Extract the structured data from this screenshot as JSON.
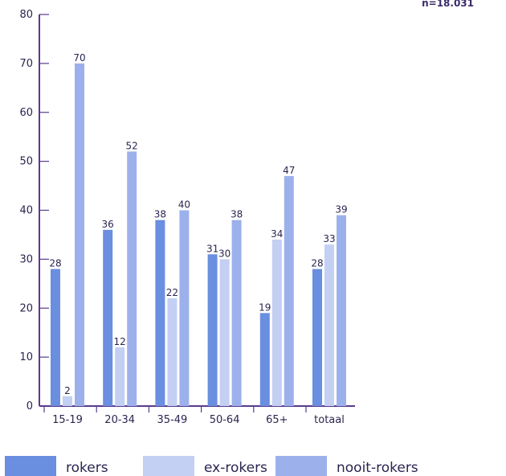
{
  "note": "n=18.031",
  "colors": {
    "axis": "#5a3a8c",
    "text": "#2a2550",
    "rokers": "#6a8ee0",
    "ex-rokers": "#c3cff3",
    "nooit-rokers": "#9cb1ec"
  },
  "chart_data": {
    "type": "bar",
    "title": "",
    "xlabel": "",
    "ylabel": "",
    "ylim": [
      0,
      80
    ],
    "yticks": [
      0,
      10,
      20,
      30,
      40,
      50,
      60,
      70,
      80
    ],
    "grid": false,
    "legend_position": "bottom",
    "categories": [
      "15-19",
      "20-34",
      "35-49",
      "50-64",
      "65+",
      "totaal"
    ],
    "series": [
      {
        "name": "rokers",
        "color_key": "rokers",
        "values": [
          28,
          36,
          38,
          31,
          19,
          28
        ]
      },
      {
        "name": "ex-rokers",
        "color_key": "ex-rokers",
        "values": [
          2,
          12,
          22,
          30,
          34,
          33
        ]
      },
      {
        "name": "nooit-rokers",
        "color_key": "nooit-rokers",
        "values": [
          70,
          52,
          40,
          38,
          47,
          39
        ]
      }
    ]
  }
}
